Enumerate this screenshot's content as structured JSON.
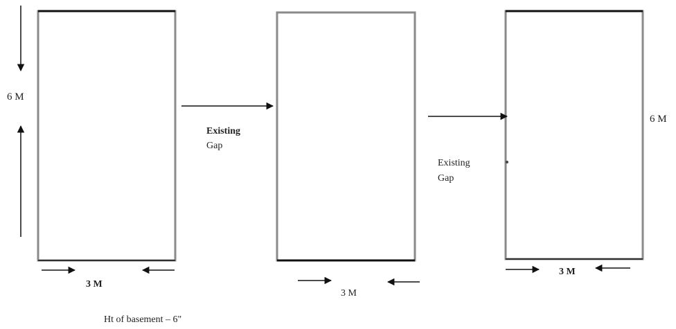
{
  "diagram": {
    "height_label_left": "6 M",
    "height_label_right": "6 M",
    "gap_label_1_line1": "Existing",
    "gap_label_1_line2": "Gap",
    "gap_label_2_line1": "Existing",
    "gap_label_2_line2": "Gap",
    "width_label_1": "3 M",
    "width_label_2": "3 M",
    "width_label_3": "3 M",
    "footnote": "Ht of basement – 6\"",
    "colors": {
      "rect_stroke": "#8a8a8a",
      "rect_top": "#111111",
      "arrow": "#111111",
      "text": "#222222"
    }
  }
}
